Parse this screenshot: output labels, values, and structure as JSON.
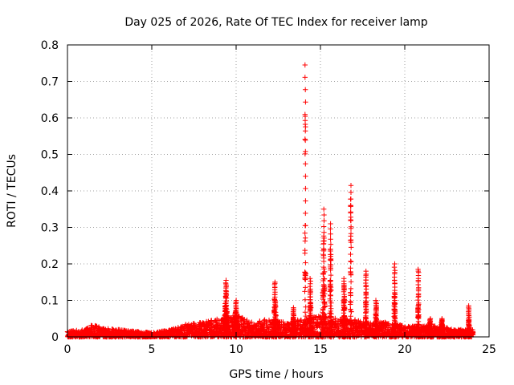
{
  "chart_data": {
    "type": "scatter",
    "title": "Day 025 of 2026, Rate Of TEC Index for receiver lamp",
    "xlabel": "GPS time / hours",
    "ylabel": "ROTI / TECUs",
    "xlim": [
      0,
      25
    ],
    "ylim": [
      0,
      0.8
    ],
    "x_ticks": [
      0,
      5,
      10,
      15,
      20,
      25
    ],
    "x_tick_labels": [
      "0",
      "5",
      "10",
      "15",
      "20",
      "25"
    ],
    "y_ticks": [
      0,
      0.1,
      0.2,
      0.3,
      0.4,
      0.5,
      0.6,
      0.7,
      0.8
    ],
    "y_tick_labels": [
      "0",
      "0.1",
      "0.2",
      "0.3",
      "0.4",
      "0.5",
      "0.6",
      "0.7",
      "0.8"
    ],
    "grid": true,
    "marker": "+",
    "marker_color": "#ff0000",
    "background_level": [
      [
        0,
        0.015
      ],
      [
        1,
        0.02
      ],
      [
        1.5,
        0.035
      ],
      [
        2,
        0.025
      ],
      [
        3,
        0.02
      ],
      [
        4,
        0.015
      ],
      [
        5,
        0.012
      ],
      [
        6,
        0.018
      ],
      [
        7,
        0.035
      ],
      [
        8,
        0.04
      ],
      [
        9,
        0.05
      ],
      [
        10,
        0.06
      ],
      [
        11,
        0.04
      ],
      [
        12,
        0.05
      ],
      [
        13,
        0.04
      ],
      [
        14,
        0.05
      ],
      [
        15,
        0.06
      ],
      [
        16,
        0.05
      ],
      [
        17,
        0.05
      ],
      [
        18,
        0.04
      ],
      [
        19,
        0.04
      ],
      [
        20,
        0.03
      ],
      [
        21,
        0.03
      ],
      [
        22,
        0.03
      ],
      [
        23,
        0.02
      ],
      [
        24,
        0.02
      ]
    ],
    "peaks": [
      {
        "x": 9.4,
        "y": 0.155,
        "width": 0.25
      },
      {
        "x": 10.0,
        "y": 0.1,
        "width": 0.3
      },
      {
        "x": 12.3,
        "y": 0.15,
        "width": 0.2
      },
      {
        "x": 13.4,
        "y": 0.08,
        "width": 0.15
      },
      {
        "x": 14.1,
        "y": 0.745,
        "width": 0.07
      },
      {
        "x": 14.4,
        "y": 0.16,
        "width": 0.15
      },
      {
        "x": 15.2,
        "y": 0.35,
        "width": 0.18
      },
      {
        "x": 15.6,
        "y": 0.31,
        "width": 0.12
      },
      {
        "x": 16.4,
        "y": 0.16,
        "width": 0.15
      },
      {
        "x": 16.8,
        "y": 0.415,
        "width": 0.08
      },
      {
        "x": 17.7,
        "y": 0.18,
        "width": 0.12
      },
      {
        "x": 18.3,
        "y": 0.1,
        "width": 0.15
      },
      {
        "x": 19.4,
        "y": 0.2,
        "width": 0.12
      },
      {
        "x": 20.8,
        "y": 0.185,
        "width": 0.1
      },
      {
        "x": 21.5,
        "y": 0.05,
        "width": 0.2
      },
      {
        "x": 22.2,
        "y": 0.05,
        "width": 0.2
      },
      {
        "x": 23.8,
        "y": 0.085,
        "width": 0.1
      }
    ]
  }
}
